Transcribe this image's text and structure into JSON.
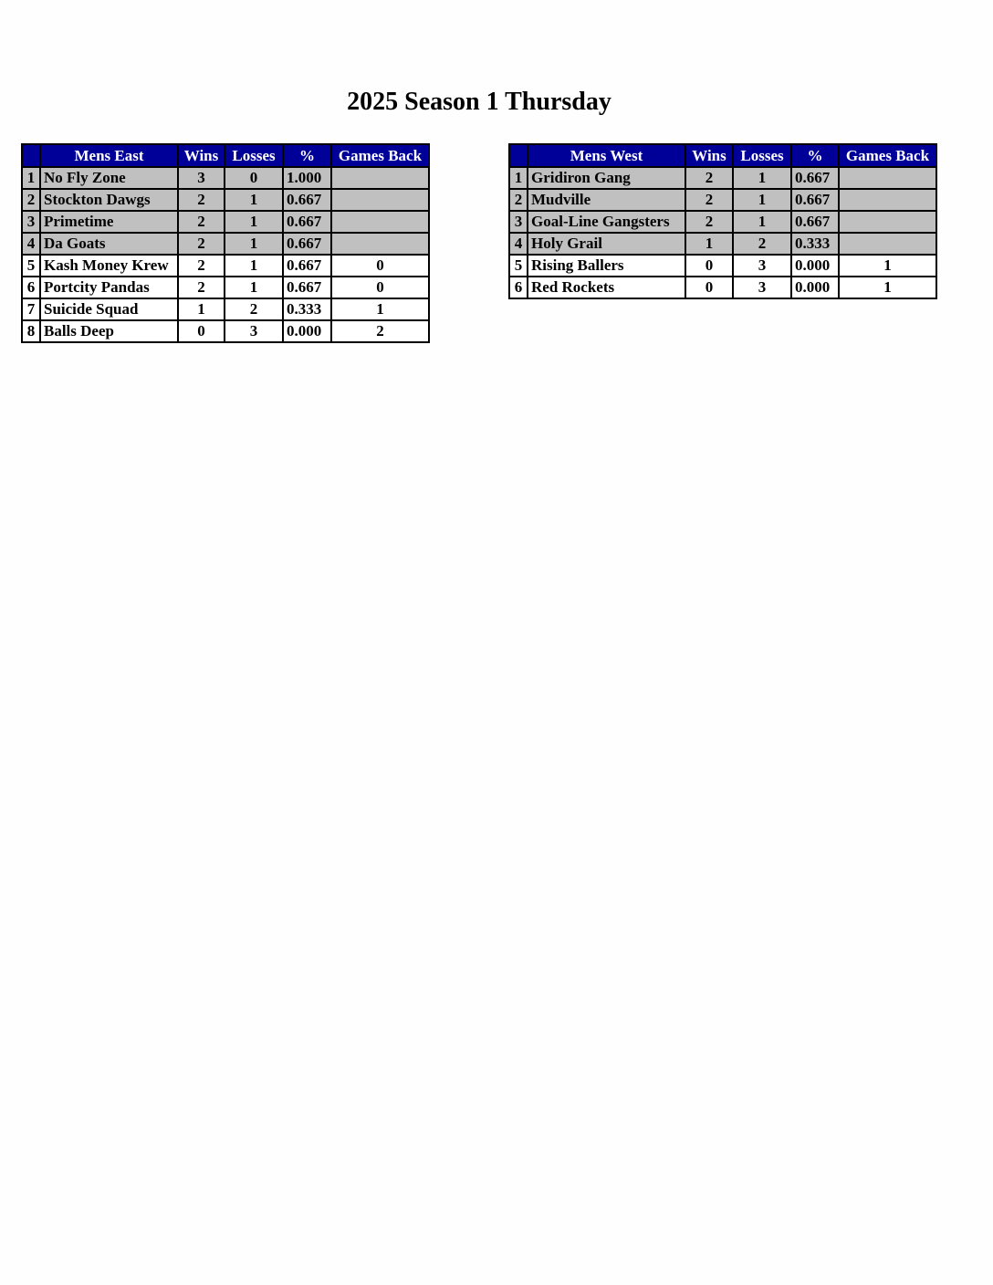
{
  "title": "2025 Season 1 Thursday",
  "colors": {
    "header_bg": "#000099",
    "header_text": "#ffffff",
    "highlight_row": "#c0c0c0"
  },
  "divisions": [
    {
      "name": "Mens East",
      "columns": [
        "Wins",
        "Losses",
        "%",
        "Games Back"
      ],
      "rows": [
        {
          "rank": "1",
          "team": "No Fly Zone",
          "wins": "3",
          "losses": "0",
          "pct": "1.000",
          "gb": "",
          "highlight": true
        },
        {
          "rank": "2",
          "team": "Stockton Dawgs",
          "wins": "2",
          "losses": "1",
          "pct": "0.667",
          "gb": "",
          "highlight": true
        },
        {
          "rank": "3",
          "team": "Primetime",
          "wins": "2",
          "losses": "1",
          "pct": "0.667",
          "gb": "",
          "highlight": true
        },
        {
          "rank": "4",
          "team": "Da Goats",
          "wins": "2",
          "losses": "1",
          "pct": "0.667",
          "gb": "",
          "highlight": true
        },
        {
          "rank": "5",
          "team": "Kash Money Krew",
          "wins": "2",
          "losses": "1",
          "pct": "0.667",
          "gb": "0",
          "highlight": false
        },
        {
          "rank": "6",
          "team": "Portcity Pandas",
          "wins": "2",
          "losses": "1",
          "pct": "0.667",
          "gb": "0",
          "highlight": false
        },
        {
          "rank": "7",
          "team": "Suicide Squad",
          "wins": "1",
          "losses": "2",
          "pct": "0.333",
          "gb": "1",
          "highlight": false
        },
        {
          "rank": "8",
          "team": "Balls Deep",
          "wins": "0",
          "losses": "3",
          "pct": "0.000",
          "gb": "2",
          "highlight": false
        }
      ]
    },
    {
      "name": "Mens West",
      "columns": [
        "Wins",
        "Losses",
        "%",
        "Games Back"
      ],
      "rows": [
        {
          "rank": "1",
          "team": "Gridiron Gang",
          "wins": "2",
          "losses": "1",
          "pct": "0.667",
          "gb": "",
          "highlight": true
        },
        {
          "rank": "2",
          "team": "Mudville",
          "wins": "2",
          "losses": "1",
          "pct": "0.667",
          "gb": "",
          "highlight": true
        },
        {
          "rank": "3",
          "team": "Goal-Line Gangsters",
          "wins": "2",
          "losses": "1",
          "pct": "0.667",
          "gb": "",
          "highlight": true
        },
        {
          "rank": "4",
          "team": "Holy Grail",
          "wins": "1",
          "losses": "2",
          "pct": "0.333",
          "gb": "",
          "highlight": true
        },
        {
          "rank": "5",
          "team": "Rising Ballers",
          "wins": "0",
          "losses": "3",
          "pct": "0.000",
          "gb": "1",
          "highlight": false
        },
        {
          "rank": "6",
          "team": "Red Rockets",
          "wins": "0",
          "losses": "3",
          "pct": "0.000",
          "gb": "1",
          "highlight": false
        }
      ]
    }
  ]
}
